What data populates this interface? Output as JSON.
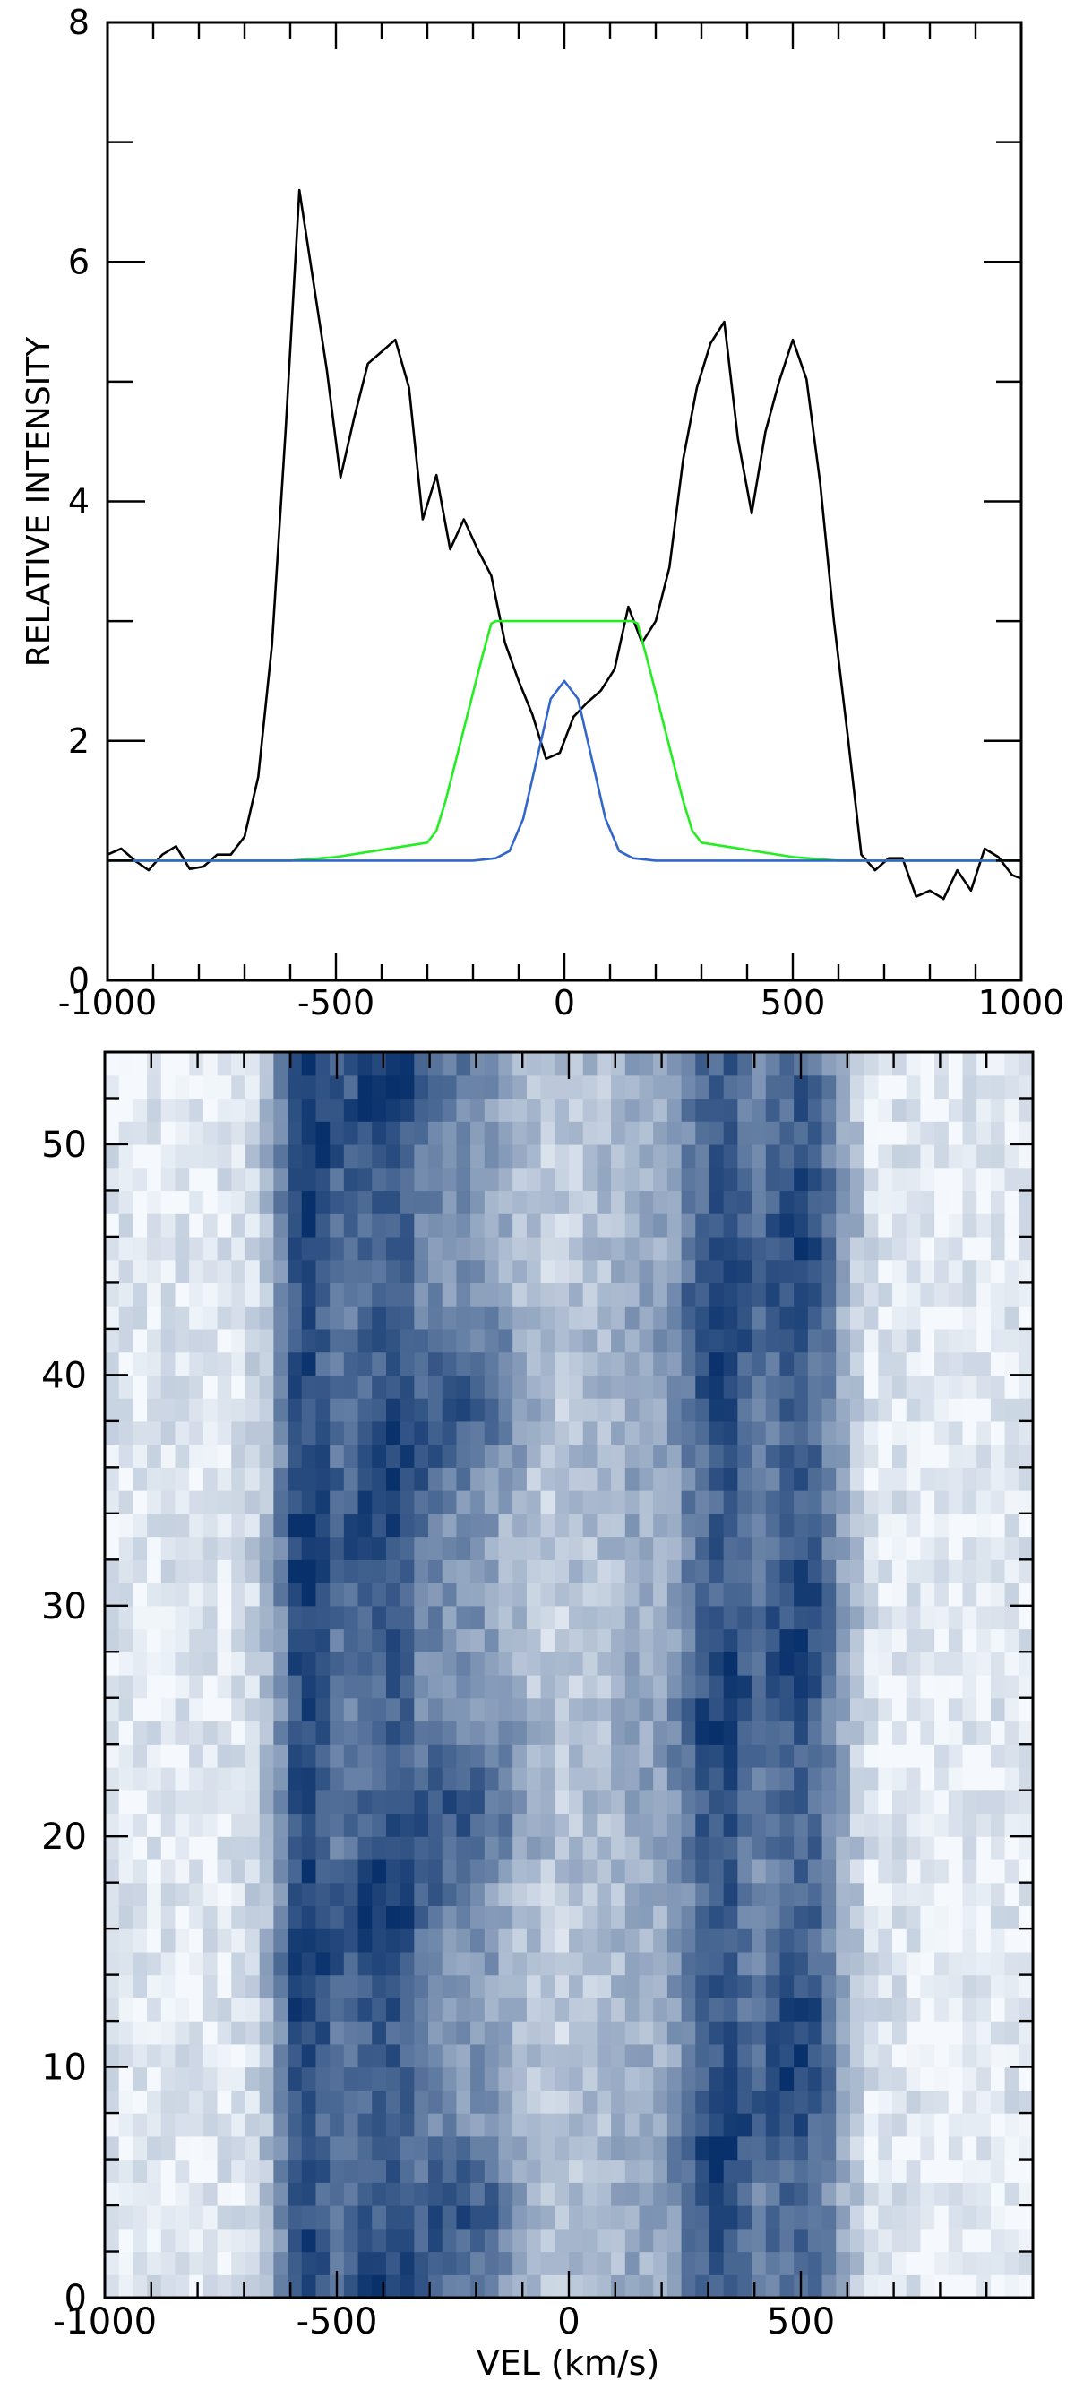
{
  "chart_data": [
    {
      "type": "line",
      "ylabel": "RELATIVE INTENSITY",
      "xlim": [
        -1000,
        1000
      ],
      "ylim": [
        0,
        8
      ],
      "xticks": [
        -1000,
        -500,
        0,
        500,
        1000
      ],
      "yticks": [
        0,
        2,
        4,
        6,
        8
      ],
      "xtick_labels": [
        "-1000",
        "-500",
        "0",
        "500",
        "1000"
      ],
      "ytick_labels": [
        "0",
        "2",
        "4",
        "6",
        "8"
      ],
      "series": [
        {
          "color": "#000000",
          "x": [
            -1000,
            -970,
            -940,
            -910,
            -880,
            -850,
            -820,
            -790,
            -760,
            -730,
            -700,
            -670,
            -640,
            -610,
            -580,
            -550,
            -520,
            -490,
            -460,
            -430,
            -400,
            -370,
            -340,
            -310,
            -280,
            -250,
            -220,
            -190,
            -160,
            -130,
            -100,
            -70,
            -40,
            -10,
            20,
            50,
            80,
            110,
            140,
            170,
            200,
            230,
            260,
            290,
            320,
            350,
            380,
            410,
            440,
            470,
            500,
            530,
            560,
            590,
            620,
            650,
            680,
            710,
            740,
            770,
            800,
            830,
            860,
            890,
            920,
            950,
            980,
            1000
          ],
          "y": [
            1.05,
            1.1,
            1.0,
            0.92,
            1.05,
            1.12,
            0.93,
            0.95,
            1.05,
            1.05,
            1.2,
            1.7,
            2.8,
            4.6,
            6.6,
            5.85,
            5.1,
            4.2,
            4.7,
            5.15,
            5.25,
            5.35,
            4.95,
            3.85,
            4.22,
            3.6,
            3.85,
            3.6,
            3.38,
            2.82,
            2.5,
            2.22,
            1.85,
            1.9,
            2.2,
            2.32,
            2.42,
            2.6,
            3.12,
            2.82,
            3.0,
            3.45,
            4.35,
            4.95,
            5.32,
            5.5,
            4.52,
            3.9,
            4.58,
            5.0,
            5.35,
            5.02,
            4.15,
            3.0,
            2.05,
            1.05,
            0.92,
            1.02,
            1.02,
            0.7,
            0.75,
            0.68,
            0.92,
            0.75,
            1.1,
            1.03,
            0.88,
            0.85
          ]
        },
        {
          "color": "#22ee22",
          "x": [
            -1000,
            -700,
            -600,
            -500,
            -400,
            -300,
            -280,
            -260,
            -240,
            -220,
            -200,
            -180,
            -160,
            -150,
            -100,
            0,
            100,
            150,
            160,
            180,
            200,
            220,
            240,
            260,
            280,
            300,
            400,
            500,
            600,
            700,
            1000
          ],
          "y": [
            1.0,
            1.0,
            1.0,
            1.03,
            1.09,
            1.15,
            1.25,
            1.5,
            1.8,
            2.1,
            2.4,
            2.7,
            2.98,
            3.0,
            3.0,
            3.0,
            3.0,
            3.0,
            2.98,
            2.7,
            2.4,
            2.1,
            1.8,
            1.5,
            1.25,
            1.15,
            1.09,
            1.03,
            1.0,
            1.0,
            1.0
          ]
        },
        {
          "color": "#3366cc",
          "x": [
            -1000,
            -200,
            -150,
            -120,
            -90,
            -60,
            -30,
            0,
            30,
            60,
            90,
            120,
            150,
            200,
            1000
          ],
          "y": [
            1.0,
            1.0,
            1.02,
            1.08,
            1.35,
            1.85,
            2.35,
            2.5,
            2.35,
            1.85,
            1.35,
            1.08,
            1.02,
            1.0,
            1.0
          ]
        }
      ]
    },
    {
      "type": "heatmap",
      "xlabel": "VEL (km/s)",
      "xlim": [
        -1000,
        1000
      ],
      "ylim": [
        0,
        54
      ],
      "xticks": [
        -1000,
        -500,
        0,
        500
      ],
      "yticks": [
        0,
        10,
        20,
        30,
        40,
        50
      ],
      "xtick_labels": [
        "-1000",
        "-500",
        "0",
        "500"
      ],
      "ytick_labels": [
        "0",
        "10",
        "20",
        "30",
        "40",
        "50"
      ],
      "colormap": [
        "#f5f9fd",
        "#08306b"
      ],
      "velocity_bins": 66,
      "phase_bins": 54,
      "blob_rows": [
        6,
        14,
        24,
        32,
        40,
        52
      ],
      "baseline_intensity": 1.0
    }
  ]
}
